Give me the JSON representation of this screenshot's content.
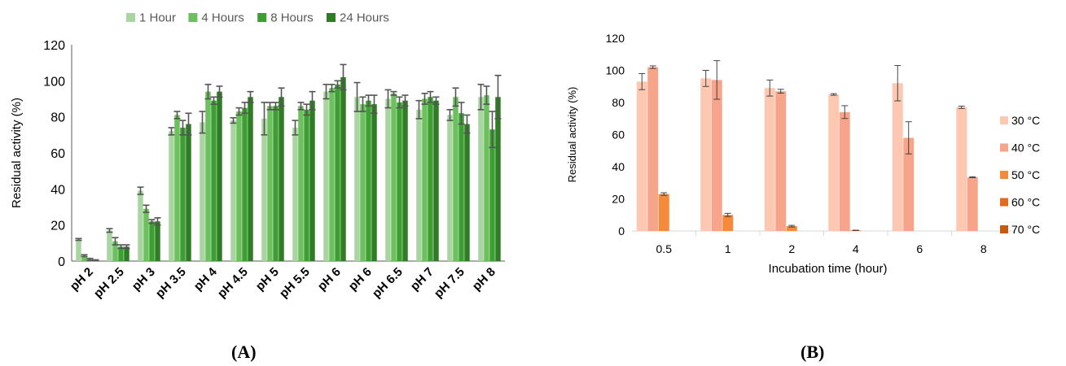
{
  "chart_data": [
    {
      "panel": "A",
      "type": "bar",
      "title": "",
      "xlabel": "",
      "ylabel": "Residual activity (%)",
      "ylim": [
        0,
        120
      ],
      "yticks": [
        0,
        20,
        40,
        60,
        80,
        100,
        120
      ],
      "grid": false,
      "legend_position": "top",
      "categories": [
        "pH 2",
        "pH 2.5",
        "pH 3",
        "pH 3.5",
        "pH 4",
        "pH 4.5",
        "pH 5",
        "pH 5.5",
        "pH 6",
        "pH 6",
        "pH 6.5",
        "pH 7",
        "pH 7.5",
        "pH 8"
      ],
      "series": [
        {
          "name": "1 Hour",
          "color": "#a9d6a0",
          "values": [
            12,
            17,
            39,
            72,
            77,
            78,
            79,
            74,
            94,
            91,
            90,
            84,
            81,
            91
          ],
          "errors": [
            0.5,
            1,
            2,
            2,
            6,
            1.5,
            9,
            4,
            4,
            8,
            5,
            5,
            3,
            7
          ]
        },
        {
          "name": "4 Hours",
          "color": "#6cc05d",
          "values": [
            3,
            11,
            29,
            81,
            94,
            83,
            86,
            86,
            96,
            87,
            93,
            90,
            91,
            92
          ],
          "errors": [
            0.5,
            2,
            2,
            2,
            4,
            2,
            2,
            2,
            2,
            4,
            1,
            3,
            5,
            5
          ]
        },
        {
          "name": "8 Hours",
          "color": "#3d9f33",
          "values": [
            1,
            8,
            22,
            74,
            89,
            85,
            86,
            84,
            98,
            89,
            88,
            91,
            82,
            73
          ],
          "errors": [
            0.5,
            1,
            1,
            4,
            2,
            3,
            2,
            3,
            2,
            3,
            3,
            3,
            6,
            10
          ]
        },
        {
          "name": "24 Hours",
          "color": "#2e7d24",
          "values": [
            0.5,
            8,
            22,
            76,
            94,
            91,
            91,
            89,
            102,
            87,
            89,
            89,
            76,
            91
          ],
          "errors": [
            0.2,
            1,
            2,
            6,
            3,
            3,
            5,
            5,
            7,
            5,
            3,
            2,
            5,
            12
          ]
        }
      ]
    },
    {
      "panel": "B",
      "type": "bar",
      "title": "",
      "xlabel": "Incubation time (hour)",
      "ylabel": "Residual activity (%)",
      "ylim": [
        0,
        120
      ],
      "yticks": [
        0,
        20,
        40,
        60,
        80,
        100,
        120
      ],
      "grid": false,
      "legend_position": "right",
      "categories": [
        "0.5",
        "1",
        "2",
        "4",
        "6",
        "8"
      ],
      "series": [
        {
          "name": "30 °C",
          "color": "#fcc8b2",
          "values": [
            93,
            95,
            89,
            85,
            92,
            77
          ],
          "errors": [
            5,
            5,
            5,
            0.5,
            11,
            0.7
          ]
        },
        {
          "name": "40 °C",
          "color": "#f7a58a",
          "values": [
            102,
            94,
            87,
            74,
            58,
            33.5
          ],
          "errors": [
            0.8,
            12,
            1.2,
            4,
            10,
            0.3
          ]
        },
        {
          "name": "50 °C",
          "color": "#f58b3a",
          "values": [
            23,
            10,
            3,
            0.4,
            0,
            0
          ],
          "errors": [
            0.8,
            1,
            0.5,
            0.1,
            0,
            0
          ]
        },
        {
          "name": "60 °C",
          "color": "#e06b1f",
          "values": [
            0,
            0,
            0,
            0,
            0,
            0
          ],
          "errors": [
            0,
            0,
            0,
            0,
            0,
            0
          ]
        },
        {
          "name": "70 °C",
          "color": "#c55a11",
          "values": [
            0,
            0,
            0,
            0,
            0,
            0
          ],
          "errors": [
            0,
            0,
            0,
            0,
            0,
            0
          ]
        }
      ]
    }
  ],
  "captions": {
    "a": "(A)",
    "b": "(B)"
  }
}
